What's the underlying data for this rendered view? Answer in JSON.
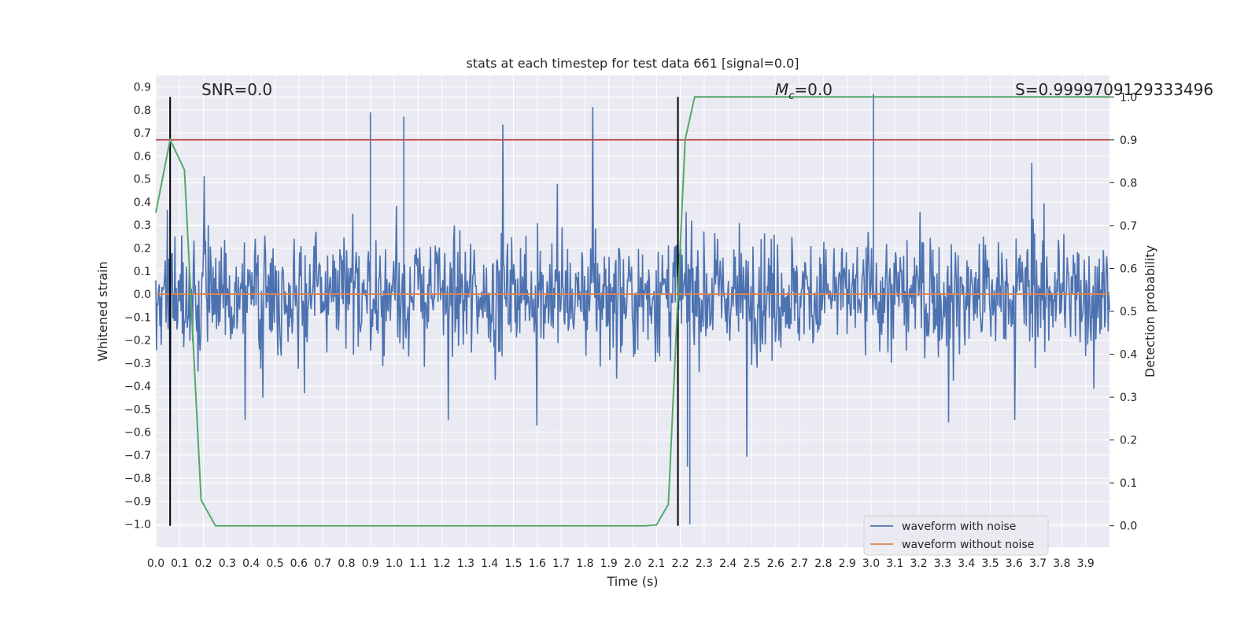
{
  "chart_data": {
    "type": "line",
    "title": "stats at each timestep for test data 661 [signal=0.0]",
    "xlabel": "Time (s)",
    "ylabel_left": "Whitened strain",
    "ylabel_right": "Detection probability",
    "xlim": [
      0.0,
      4.0
    ],
    "ylim_left": [
      -1.1,
      0.95
    ],
    "ylim_right": [
      -0.05,
      1.05
    ],
    "x_ticks": [
      "0.0",
      "0.1",
      "0.2",
      "0.3",
      "0.4",
      "0.5",
      "0.6",
      "0.7",
      "0.8",
      "0.9",
      "1.0",
      "1.1",
      "1.2",
      "1.3",
      "1.4",
      "1.5",
      "1.6",
      "1.7",
      "1.8",
      "1.9",
      "2.0",
      "2.1",
      "2.2",
      "2.3",
      "2.4",
      "2.5",
      "2.6",
      "2.7",
      "2.8",
      "2.9",
      "3.0",
      "3.1",
      "3.2",
      "3.3",
      "3.4",
      "3.5",
      "3.6",
      "3.7",
      "3.8",
      "3.9"
    ],
    "y_ticks_left": [
      "0.9",
      "0.8",
      "0.7",
      "0.6",
      "0.5",
      "0.4",
      "0.3",
      "0.2",
      "0.1",
      "0.0",
      "−0.1",
      "−0.2",
      "−0.3",
      "−0.4",
      "−0.5",
      "−0.6",
      "−0.7",
      "−0.8",
      "−0.9",
      "−1.0"
    ],
    "y_ticks_right": [
      "1.0",
      "0.9",
      "0.8",
      "0.7",
      "0.6",
      "0.5",
      "0.4",
      "0.3",
      "0.2",
      "0.1",
      "0.0"
    ],
    "grid": true,
    "legend_position": "lower-right",
    "series": [
      {
        "name": "waveform with noise",
        "color": "#4c72b0",
        "note_values": "dense random noise, amplitude roughly -1.0 to 0.9"
      },
      {
        "name": "waveform without noise",
        "color": "#dd8452",
        "values": "constant 0.0"
      },
      {
        "color": "#55a868",
        "axis": "right",
        "x": [
          0.0,
          0.06,
          0.12,
          0.19,
          0.25,
          0.5,
          1.1,
          1.5,
          2.05,
          2.1,
          2.15,
          2.22,
          2.26,
          4.0
        ],
        "y": [
          0.73,
          0.9,
          0.83,
          0.06,
          0.0,
          0.0,
          0.0,
          0.0,
          0.0,
          0.002,
          0.05,
          0.9,
          1.0,
          1.0
        ]
      }
    ],
    "hlines": [
      {
        "axis": "right",
        "y": 0.9,
        "color": "#c44e52"
      }
    ],
    "vlines": [
      {
        "x": 0.06,
        "color": "#000000"
      },
      {
        "x": 2.19,
        "color": "#000000"
      }
    ],
    "annotations": {
      "snr": "SNR=0.0",
      "mc_symbol": "M",
      "mc_sub": "c",
      "mc_value": "=0.0",
      "s": "S=0.9999709129333496"
    }
  },
  "colors": {
    "background": "#eaeaf2",
    "grid": "#ffffff",
    "noise": "#4c72b0",
    "clean": "#dd8452",
    "prob": "#55a868",
    "threshold": "#c44e52"
  }
}
